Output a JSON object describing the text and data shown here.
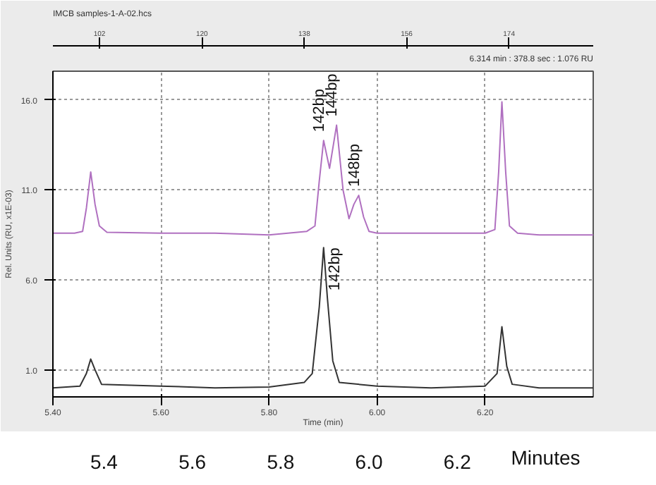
{
  "chart_data": {
    "type": "line",
    "title": "IMCB samples-1-A-02.hcs",
    "subtitle": "6.314 min : 378.8 sec : 1.076 RU",
    "xlabel": "Time (min)",
    "ylabel": "Rel. Units (RU, x1E-03)",
    "xlim": [
      5.4,
      6.4
    ],
    "xticks": [
      {
        "value": 5.4,
        "label": "5.40"
      },
      {
        "value": 5.6,
        "label": "5.60"
      },
      {
        "value": 5.8,
        "label": "5.80"
      },
      {
        "value": 6.0,
        "label": "6.00"
      },
      {
        "value": 6.2,
        "label": "6.20"
      }
    ],
    "x2lim": [
      93.8,
      188.8
    ],
    "x2ticks": [
      102,
      120,
      138,
      156,
      174
    ],
    "ylim": [
      -0.5,
      17.6
    ],
    "yticks": [
      {
        "value": 1,
        "label": "1.0"
      },
      {
        "value": 6,
        "label": "6.0"
      },
      {
        "value": 11,
        "label": "11.0"
      },
      {
        "value": 16,
        "label": "16.0"
      }
    ],
    "grid": true,
    "line_style": "solid",
    "series": [
      {
        "color": "#b070c0",
        "x": [
          5.4,
          5.44,
          5.455,
          5.462,
          5.47,
          5.478,
          5.486,
          5.5,
          5.6,
          5.7,
          5.8,
          5.87,
          5.885,
          5.893,
          5.901,
          5.912,
          5.925,
          5.937,
          5.948,
          5.957,
          5.966,
          5.975,
          5.985,
          6.0,
          6.1,
          6.2,
          6.218,
          6.225,
          6.231,
          6.238,
          6.245,
          6.26,
          6.3,
          6.4
        ],
        "values": [
          8.6,
          8.6,
          8.7,
          10.0,
          12.0,
          10.2,
          9.0,
          8.65,
          8.6,
          8.6,
          8.5,
          8.7,
          9.0,
          11.5,
          13.75,
          12.2,
          14.6,
          11.0,
          9.4,
          10.2,
          10.7,
          9.5,
          8.7,
          8.6,
          8.6,
          8.6,
          8.8,
          12.0,
          15.9,
          12.0,
          9.0,
          8.6,
          8.5,
          8.5
        ]
      },
      {
        "color": "#333333",
        "x": [
          5.4,
          5.45,
          5.462,
          5.47,
          5.478,
          5.49,
          5.6,
          5.7,
          5.8,
          5.865,
          5.88,
          5.893,
          5.901,
          5.908,
          5.918,
          5.93,
          6.0,
          6.1,
          6.2,
          6.222,
          6.231,
          6.24,
          6.25,
          6.3,
          6.4
        ],
        "values": [
          0.0,
          0.1,
          0.8,
          1.6,
          1.0,
          0.2,
          0.1,
          0.0,
          0.05,
          0.3,
          0.8,
          4.5,
          7.8,
          5.0,
          1.5,
          0.3,
          0.1,
          0.0,
          0.1,
          0.8,
          3.4,
          1.2,
          0.2,
          0.0,
          0.0
        ]
      }
    ],
    "annotations": [
      {
        "text": "142bp",
        "x": 5.901,
        "y": 13.75
      },
      {
        "text": "144bp",
        "x": 5.925,
        "y": 14.6
      },
      {
        "text": "148bp",
        "x": 5.966,
        "y": 10.7
      },
      {
        "text": "142bp",
        "x": 5.901,
        "y": 7.8
      },
      "5.4",
      "5.6",
      "5.8",
      "6.0",
      "6.2",
      "Minutes"
    ]
  }
}
